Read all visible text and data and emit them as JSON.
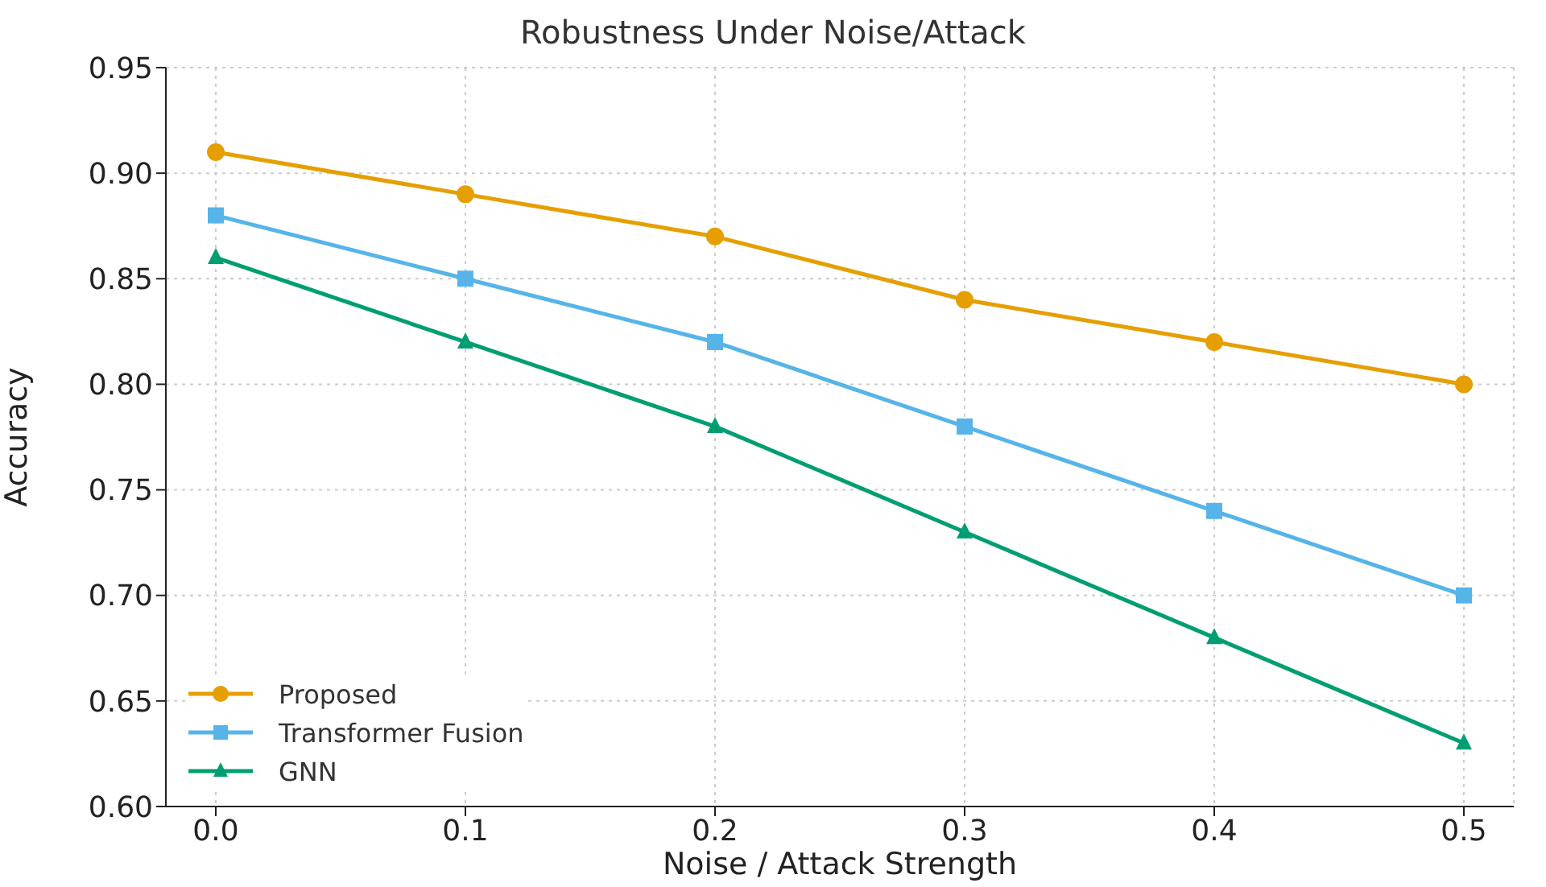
{
  "chart_data": {
    "type": "line",
    "title": "Robustness Under Noise/Attack",
    "xlabel": "Noise / Attack Strength",
    "ylabel": "Accuracy",
    "x": [
      0.0,
      0.1,
      0.2,
      0.3,
      0.4,
      0.5
    ],
    "series": [
      {
        "name": "Proposed",
        "color": "#e69f00",
        "marker": "circle",
        "values": [
          0.91,
          0.89,
          0.87,
          0.84,
          0.82,
          0.8
        ]
      },
      {
        "name": "Transformer Fusion",
        "color": "#56b4e9",
        "marker": "square",
        "values": [
          0.88,
          0.85,
          0.82,
          0.78,
          0.74,
          0.7
        ]
      },
      {
        "name": "GNN",
        "color": "#009e73",
        "marker": "triangle",
        "values": [
          0.86,
          0.82,
          0.78,
          0.73,
          0.68,
          0.63
        ]
      }
    ],
    "xlim": [
      -0.02,
      0.52
    ],
    "xticks": [
      {
        "value": 0,
        "label": "0.0"
      },
      {
        "value": 0.1,
        "label": "0.1"
      },
      {
        "value": 0.2,
        "label": "0.2"
      },
      {
        "value": 0.3,
        "label": "0.3"
      },
      {
        "value": 0.4,
        "label": "0.4"
      },
      {
        "value": 0.5,
        "label": "0.5"
      }
    ],
    "ylim": [
      0.6,
      0.95
    ],
    "yticks": [
      {
        "value": 0.6,
        "label": "0.60"
      },
      {
        "value": 0.65,
        "label": "0.65"
      },
      {
        "value": 0.7,
        "label": "0.70"
      },
      {
        "value": 0.75,
        "label": "0.75"
      },
      {
        "value": 0.8,
        "label": "0.80"
      },
      {
        "value": 0.85,
        "label": "0.85"
      },
      {
        "value": 0.9,
        "label": "0.90"
      },
      {
        "value": 0.95,
        "label": "0.95"
      }
    ],
    "grid": true,
    "legend": "bottom left",
    "line_style": "solid"
  }
}
